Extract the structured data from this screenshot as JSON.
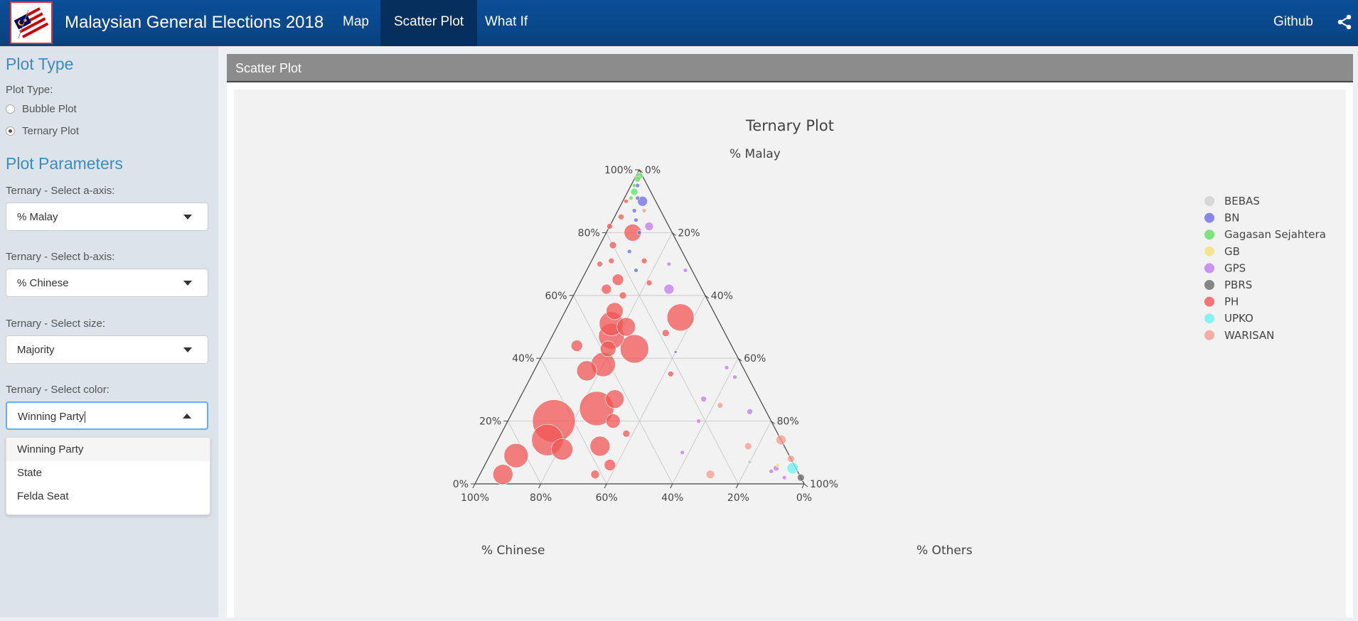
{
  "app": {
    "title": "Malaysian General Elections 2018"
  },
  "nav": {
    "items": [
      "Map",
      "Scatter Plot",
      "What If"
    ],
    "active": "Scatter Plot",
    "right_link": "Github"
  },
  "sidebar": {
    "plot_type_heading": "Plot Type",
    "plot_type_label": "Plot Type:",
    "plot_type_options": [
      {
        "label": "Bubble Plot",
        "checked": false
      },
      {
        "label": "Ternary Plot",
        "checked": true
      }
    ],
    "params_heading": "Plot Parameters",
    "a_axis": {
      "label": "Ternary - Select a-axis:",
      "value": "% Malay"
    },
    "b_axis": {
      "label": "Ternary - Select b-axis:",
      "value": "% Chinese"
    },
    "size": {
      "label": "Ternary - Select size:",
      "value": "Majority"
    },
    "color": {
      "label": "Ternary - Select color:",
      "value": "Winning Party",
      "options": [
        "Winning Party",
        "State",
        "Felda Seat"
      ]
    }
  },
  "panel": {
    "title": "Scatter Plot"
  },
  "chart_data": {
    "type": "scatter",
    "subtype": "ternary",
    "title": "Ternary Plot",
    "axes": {
      "a": "% Malay",
      "b": "% Chinese",
      "c": "% Others"
    },
    "ticks": [
      "0%",
      "20%",
      "40%",
      "60%",
      "80%",
      "100%"
    ],
    "grid": true,
    "legend_position": "right",
    "legend": [
      {
        "name": "BEBAS",
        "color": "#cfcfcf"
      },
      {
        "name": "BN",
        "color": "#6b6bea"
      },
      {
        "name": "Gagasan Sejahtera",
        "color": "#5fe05f"
      },
      {
        "name": "GB",
        "color": "#f0e27a"
      },
      {
        "name": "GPS",
        "color": "#c17aee"
      },
      {
        "name": "PBRS",
        "color": "#6a6a6a"
      },
      {
        "name": "PH",
        "color": "#f25555"
      },
      {
        "name": "UPKO",
        "color": "#6ff0f0"
      },
      {
        "name": "WARISAN",
        "color": "#f59a8e"
      }
    ],
    "points": [
      {
        "party": "Gagasan Sejahtera",
        "a": 0.98,
        "b": 0.01,
        "c": 0.01,
        "size": 5
      },
      {
        "party": "Gagasan Sejahtera",
        "a": 0.97,
        "b": 0.02,
        "c": 0.01,
        "size": 4
      },
      {
        "party": "Gagasan Sejahtera",
        "a": 0.95,
        "b": 0.04,
        "c": 0.01,
        "size": 3
      },
      {
        "party": "Gagasan Sejahtera",
        "a": 0.93,
        "b": 0.05,
        "c": 0.02,
        "size": 5
      },
      {
        "party": "Gagasan Sejahtera",
        "a": 0.91,
        "b": 0.07,
        "c": 0.02,
        "size": 3
      },
      {
        "party": "BN",
        "a": 0.95,
        "b": 0.03,
        "c": 0.02,
        "size": 3
      },
      {
        "party": "BN",
        "a": 0.91,
        "b": 0.05,
        "c": 0.04,
        "size": 3
      },
      {
        "party": "BN",
        "a": 0.9,
        "b": 0.04,
        "c": 0.06,
        "size": 7
      },
      {
        "party": "BN",
        "a": 0.87,
        "b": 0.08,
        "c": 0.05,
        "size": 3
      },
      {
        "party": "BN",
        "a": 0.84,
        "b": 0.09,
        "c": 0.07,
        "size": 3
      },
      {
        "party": "BN",
        "a": 0.8,
        "b": 0.1,
        "c": 0.1,
        "size": 3
      },
      {
        "party": "BN",
        "a": 0.74,
        "b": 0.16,
        "c": 0.1,
        "size": 3
      },
      {
        "party": "BN",
        "a": 0.68,
        "b": 0.17,
        "c": 0.15,
        "size": 3
      },
      {
        "party": "BN",
        "a": 0.42,
        "b": 0.18,
        "c": 0.4,
        "size": 2
      },
      {
        "party": "PH",
        "a": 0.9,
        "b": 0.09,
        "c": 0.01,
        "size": 3
      },
      {
        "party": "PH",
        "a": 0.85,
        "b": 0.13,
        "c": 0.02,
        "size": 4
      },
      {
        "party": "PH",
        "a": 0.8,
        "b": 0.12,
        "c": 0.08,
        "size": 12
      },
      {
        "party": "PH",
        "a": 0.82,
        "b": 0.18,
        "c": 0.0,
        "size": 4
      },
      {
        "party": "PH",
        "a": 0.76,
        "b": 0.2,
        "c": 0.04,
        "size": 5
      },
      {
        "party": "PH",
        "a": 0.71,
        "b": 0.23,
        "c": 0.06,
        "size": 4
      },
      {
        "party": "PH",
        "a": 0.65,
        "b": 0.24,
        "c": 0.11,
        "size": 8
      },
      {
        "party": "PH",
        "a": 0.7,
        "b": 0.27,
        "c": 0.03,
        "size": 4
      },
      {
        "party": "PH",
        "a": 0.62,
        "b": 0.29,
        "c": 0.09,
        "size": 7
      },
      {
        "party": "PH",
        "a": 0.6,
        "b": 0.25,
        "c": 0.15,
        "size": 5
      },
      {
        "party": "PH",
        "a": 0.55,
        "b": 0.3,
        "c": 0.15,
        "size": 12
      },
      {
        "party": "PH",
        "a": 0.51,
        "b": 0.33,
        "c": 0.16,
        "size": 17
      },
      {
        "party": "PH",
        "a": 0.5,
        "b": 0.29,
        "c": 0.21,
        "size": 13
      },
      {
        "party": "PH",
        "a": 0.47,
        "b": 0.35,
        "c": 0.18,
        "size": 18
      },
      {
        "party": "PH",
        "a": 0.43,
        "b": 0.3,
        "c": 0.27,
        "size": 20
      },
      {
        "party": "PH",
        "a": 0.43,
        "b": 0.38,
        "c": 0.19,
        "size": 11
      },
      {
        "party": "PH",
        "a": 0.38,
        "b": 0.42,
        "c": 0.2,
        "size": 17
      },
      {
        "party": "PH",
        "a": 0.36,
        "b": 0.48,
        "c": 0.16,
        "size": 14
      },
      {
        "party": "PH",
        "a": 0.27,
        "b": 0.44,
        "c": 0.29,
        "size": 13
      },
      {
        "party": "PH",
        "a": 0.24,
        "b": 0.51,
        "c": 0.25,
        "size": 24
      },
      {
        "party": "PH",
        "a": 0.2,
        "b": 0.48,
        "c": 0.32,
        "size": 10
      },
      {
        "party": "PH",
        "a": 0.2,
        "b": 0.66,
        "c": 0.14,
        "size": 30
      },
      {
        "party": "PH",
        "a": 0.14,
        "b": 0.71,
        "c": 0.15,
        "size": 22
      },
      {
        "party": "PH",
        "a": 0.11,
        "b": 0.68,
        "c": 0.21,
        "size": 15
      },
      {
        "party": "PH",
        "a": 0.09,
        "b": 0.83,
        "c": 0.08,
        "size": 17
      },
      {
        "party": "PH",
        "a": 0.03,
        "b": 0.9,
        "c": 0.07,
        "size": 14
      },
      {
        "party": "PH",
        "a": 0.12,
        "b": 0.56,
        "c": 0.32,
        "size": 14
      },
      {
        "party": "PH",
        "a": 0.06,
        "b": 0.56,
        "c": 0.38,
        "size": 8
      },
      {
        "party": "PH",
        "a": 0.03,
        "b": 0.62,
        "c": 0.35,
        "size": 6
      },
      {
        "party": "PH",
        "a": 0.16,
        "b": 0.46,
        "c": 0.38,
        "size": 5
      },
      {
        "party": "PH",
        "a": 0.35,
        "b": 0.23,
        "c": 0.42,
        "size": 4
      },
      {
        "party": "PH",
        "a": 0.48,
        "b": 0.18,
        "c": 0.34,
        "size": 5
      },
      {
        "party": "PH",
        "a": 0.64,
        "b": 0.15,
        "c": 0.21,
        "size": 4
      },
      {
        "party": "PH",
        "a": 0.71,
        "b": 0.13,
        "c": 0.16,
        "size": 4
      },
      {
        "party": "PH",
        "a": 0.53,
        "b": 0.11,
        "c": 0.36,
        "size": 19
      },
      {
        "party": "PH",
        "a": 0.44,
        "b": 0.47,
        "c": 0.09,
        "size": 8
      },
      {
        "party": "GPS",
        "a": 0.82,
        "b": 0.06,
        "c": 0.12,
        "size": 6
      },
      {
        "party": "GPS",
        "a": 0.7,
        "b": 0.06,
        "c": 0.24,
        "size": 3
      },
      {
        "party": "GPS",
        "a": 0.68,
        "b": 0.02,
        "c": 0.3,
        "size": 3
      },
      {
        "party": "GPS",
        "a": 0.62,
        "b": 0.1,
        "c": 0.28,
        "size": 7
      },
      {
        "party": "GPS",
        "a": 0.37,
        "b": 0.05,
        "c": 0.58,
        "size": 3
      },
      {
        "party": "GPS",
        "a": 0.34,
        "b": 0.04,
        "c": 0.62,
        "size": 3
      },
      {
        "party": "GPS",
        "a": 0.27,
        "b": 0.17,
        "c": 0.56,
        "size": 4
      },
      {
        "party": "GPS",
        "a": 0.23,
        "b": 0.05,
        "c": 0.72,
        "size": 4
      },
      {
        "party": "GPS",
        "a": 0.2,
        "b": 0.22,
        "c": 0.58,
        "size": 3
      },
      {
        "party": "GPS",
        "a": 0.1,
        "b": 0.32,
        "c": 0.58,
        "size": 3
      },
      {
        "party": "GPS",
        "a": 0.05,
        "b": 0.06,
        "c": 0.89,
        "size": 4
      },
      {
        "party": "GPS",
        "a": 0.04,
        "b": 0.08,
        "c": 0.88,
        "size": 3
      },
      {
        "party": "GPS",
        "a": 0.02,
        "b": 0.05,
        "c": 0.93,
        "size": 3
      },
      {
        "party": "UPKO",
        "a": 0.05,
        "b": 0.01,
        "c": 0.94,
        "size": 8
      },
      {
        "party": "PBRS",
        "a": 0.02,
        "b": 0.0,
        "c": 0.98,
        "size": 5
      },
      {
        "party": "WARISAN",
        "a": 0.14,
        "b": 0.0,
        "c": 0.86,
        "size": 7
      },
      {
        "party": "WARISAN",
        "a": 0.08,
        "b": 0.0,
        "c": 0.92,
        "size": 5
      },
      {
        "party": "WARISAN",
        "a": 0.25,
        "b": 0.13,
        "c": 0.62,
        "size": 4
      },
      {
        "party": "WARISAN",
        "a": 0.12,
        "b": 0.11,
        "c": 0.77,
        "size": 5
      },
      {
        "party": "WARISAN",
        "a": 0.03,
        "b": 0.27,
        "c": 0.7,
        "size": 6
      },
      {
        "party": "WARISAN",
        "a": 0.87,
        "b": 0.05,
        "c": 0.08,
        "size": 3
      },
      {
        "party": "BEBAS",
        "a": 0.07,
        "b": 0.13,
        "c": 0.8,
        "size": 3
      },
      {
        "party": "GB",
        "a": 0.06,
        "b": 0.05,
        "c": 0.89,
        "size": 3
      }
    ]
  }
}
